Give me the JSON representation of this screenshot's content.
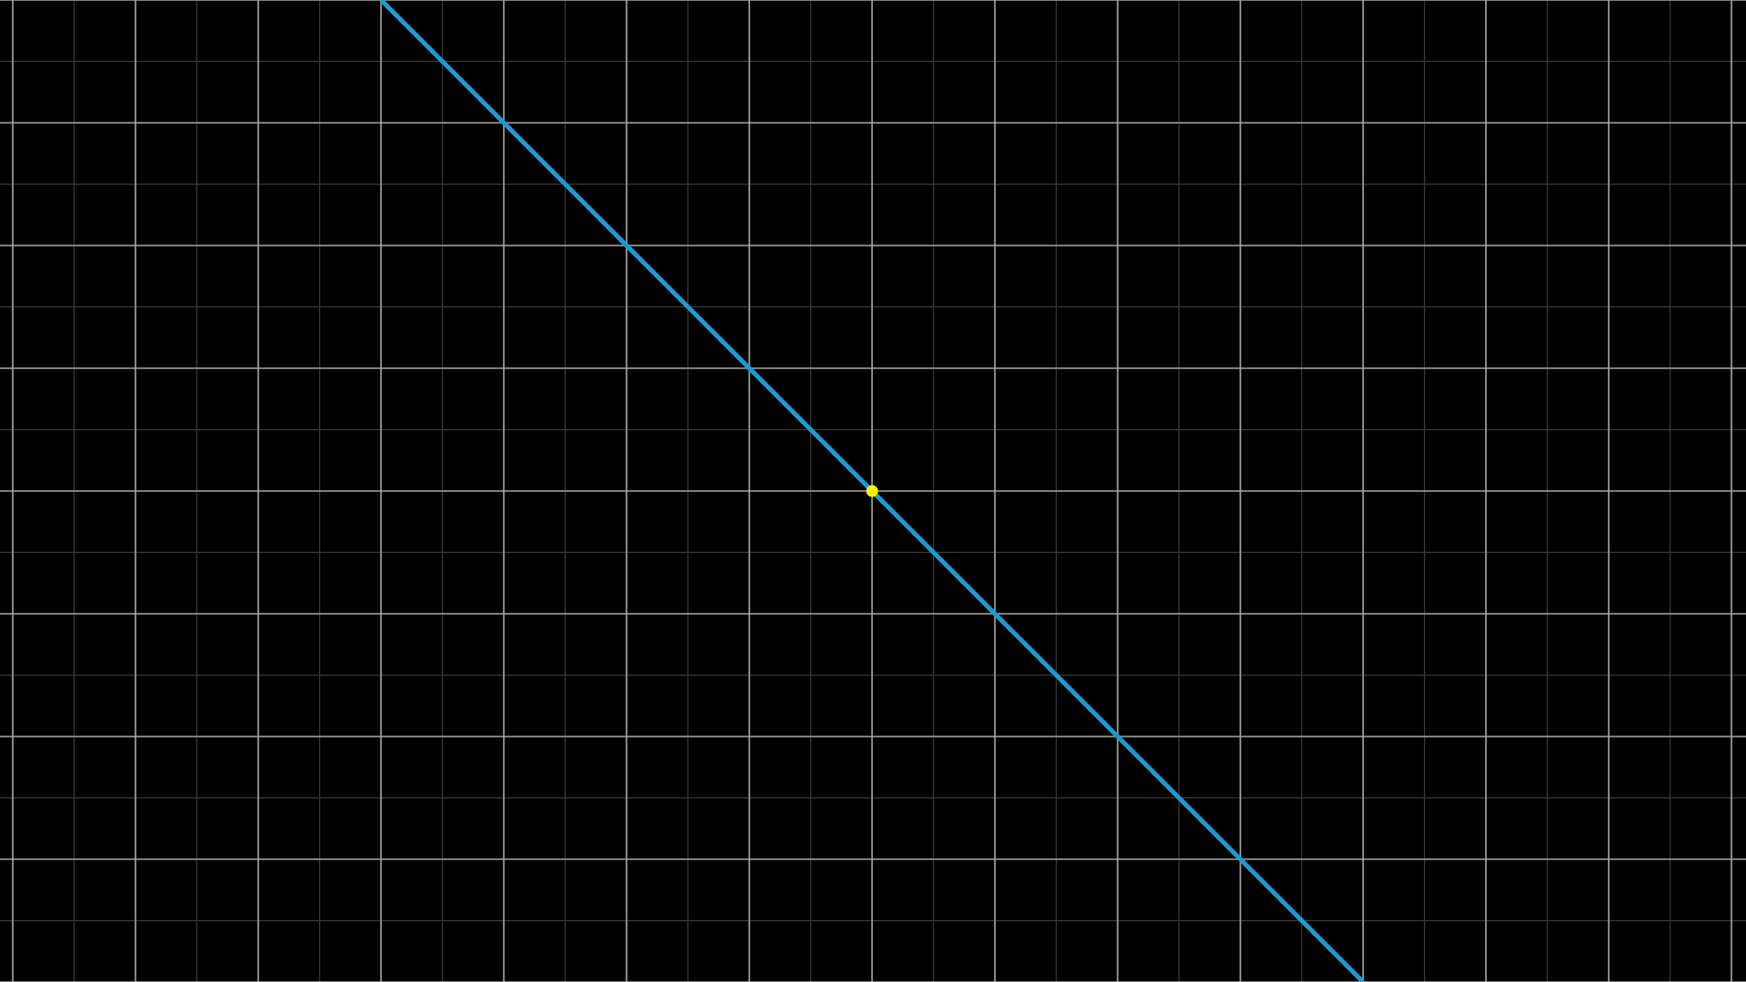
{
  "chart_data": {
    "type": "line",
    "title": "",
    "xlabel": "",
    "ylabel": "",
    "xlim": [
      -7.1,
      7.1
    ],
    "ylim": [
      -4,
      4
    ],
    "grid": true,
    "grid_step_major": 1,
    "grid_step_minor": 0.5,
    "series": [
      {
        "name": "line",
        "equation": "y = -x",
        "x": [
          -4,
          4
        ],
        "y": [
          4,
          -4
        ]
      }
    ],
    "points": [
      {
        "name": "origin-point",
        "x": 0,
        "y": 0
      }
    ]
  },
  "colors": {
    "background": "#000000",
    "grid_major": "#a9a9a9",
    "grid_minor": "#3a3a3a",
    "line": "#1e9bd0",
    "point": "#fff200"
  }
}
